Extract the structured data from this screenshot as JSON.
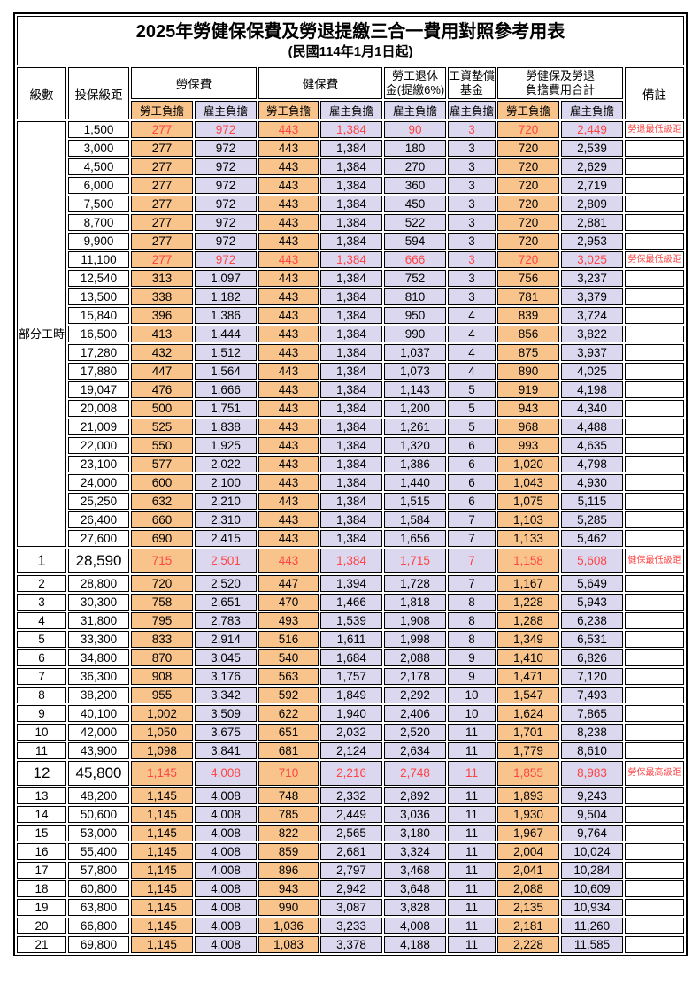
{
  "title": "2025年勞健保保費及勞退提繳三合一費用對照參考用表",
  "subtitle": "(民國114年1月1日起)",
  "colors": {
    "employee_col_bg": "#F9C48C",
    "employer_col_bg": "#DBD7EE",
    "highlight_red": "#FF4444",
    "border": "#000000"
  },
  "header": {
    "level": "級數",
    "bracket": "投保級距",
    "labor_ins": "勞保費",
    "health_ins": "健保費",
    "pension_line1": "勞工退休",
    "pension_line2": "金(提繳6%)",
    "wage_fund_line1": "工資墊償",
    "wage_fund_line2": "基金",
    "total_line1": "勞健保及勞退",
    "total_line2": "負擔費用合計",
    "remark": "備註",
    "employee": "勞工負擔",
    "employer": "雇主負擔"
  },
  "part_time_label": "部分工時",
  "part_time_rowspan": 23,
  "columns": [
    {
      "key": "bracket",
      "name": "bracket-cell",
      "cls": "c-bracket"
    },
    {
      "key": "v0",
      "name": "labor-employee-cell",
      "cls": "c-emp val"
    },
    {
      "key": "v1",
      "name": "labor-employer-cell",
      "cls": "c-er val"
    },
    {
      "key": "v2",
      "name": "health-employee-cell",
      "cls": "c-emp val"
    },
    {
      "key": "v3",
      "name": "health-employer-cell",
      "cls": "c-er val"
    },
    {
      "key": "v4",
      "name": "pension-employer-cell",
      "cls": "c-er val"
    },
    {
      "key": "v5",
      "name": "wage-fund-employer-cell",
      "cls": "c-er val"
    },
    {
      "key": "v6",
      "name": "total-employee-cell",
      "cls": "c-emp val"
    },
    {
      "key": "v7",
      "name": "total-employer-cell",
      "cls": "c-er val"
    },
    {
      "key": "remark",
      "name": "remark-cell",
      "cls": "c-remark"
    }
  ],
  "rows": [
    {
      "level": "",
      "bracket": "1,500",
      "v": [
        "277",
        "972",
        "443",
        "1,384",
        "90",
        "3",
        "720",
        "2,449"
      ],
      "remark": "勞退最低級距",
      "red": true
    },
    {
      "level": "",
      "bracket": "3,000",
      "v": [
        "277",
        "972",
        "443",
        "1,384",
        "180",
        "3",
        "720",
        "2,539"
      ]
    },
    {
      "level": "",
      "bracket": "4,500",
      "v": [
        "277",
        "972",
        "443",
        "1,384",
        "270",
        "3",
        "720",
        "2,629"
      ]
    },
    {
      "level": "",
      "bracket": "6,000",
      "v": [
        "277",
        "972",
        "443",
        "1,384",
        "360",
        "3",
        "720",
        "2,719"
      ]
    },
    {
      "level": "",
      "bracket": "7,500",
      "v": [
        "277",
        "972",
        "443",
        "1,384",
        "450",
        "3",
        "720",
        "2,809"
      ]
    },
    {
      "level": "",
      "bracket": "8,700",
      "v": [
        "277",
        "972",
        "443",
        "1,384",
        "522",
        "3",
        "720",
        "2,881"
      ]
    },
    {
      "level": "",
      "bracket": "9,900",
      "v": [
        "277",
        "972",
        "443",
        "1,384",
        "594",
        "3",
        "720",
        "2,953"
      ]
    },
    {
      "level": "",
      "bracket": "11,100",
      "v": [
        "277",
        "972",
        "443",
        "1,384",
        "666",
        "3",
        "720",
        "3,025"
      ],
      "remark": "勞保最低級距",
      "red": true
    },
    {
      "level": "",
      "bracket": "12,540",
      "v": [
        "313",
        "1,097",
        "443",
        "1,384",
        "752",
        "3",
        "756",
        "3,237"
      ]
    },
    {
      "level": "",
      "bracket": "13,500",
      "v": [
        "338",
        "1,182",
        "443",
        "1,384",
        "810",
        "3",
        "781",
        "3,379"
      ]
    },
    {
      "level": "",
      "bracket": "15,840",
      "v": [
        "396",
        "1,386",
        "443",
        "1,384",
        "950",
        "4",
        "839",
        "3,724"
      ]
    },
    {
      "level": "",
      "bracket": "16,500",
      "v": [
        "413",
        "1,444",
        "443",
        "1,384",
        "990",
        "4",
        "856",
        "3,822"
      ]
    },
    {
      "level": "",
      "bracket": "17,280",
      "v": [
        "432",
        "1,512",
        "443",
        "1,384",
        "1,037",
        "4",
        "875",
        "3,937"
      ]
    },
    {
      "level": "",
      "bracket": "17,880",
      "v": [
        "447",
        "1,564",
        "443",
        "1,384",
        "1,073",
        "4",
        "890",
        "4,025"
      ]
    },
    {
      "level": "",
      "bracket": "19,047",
      "v": [
        "476",
        "1,666",
        "443",
        "1,384",
        "1,143",
        "5",
        "919",
        "4,198"
      ]
    },
    {
      "level": "",
      "bracket": "20,008",
      "v": [
        "500",
        "1,751",
        "443",
        "1,384",
        "1,200",
        "5",
        "943",
        "4,340"
      ]
    },
    {
      "level": "",
      "bracket": "21,009",
      "v": [
        "525",
        "1,838",
        "443",
        "1,384",
        "1,261",
        "5",
        "968",
        "4,488"
      ]
    },
    {
      "level": "",
      "bracket": "22,000",
      "v": [
        "550",
        "1,925",
        "443",
        "1,384",
        "1,320",
        "6",
        "993",
        "4,635"
      ]
    },
    {
      "level": "",
      "bracket": "23,100",
      "v": [
        "577",
        "2,022",
        "443",
        "1,384",
        "1,386",
        "6",
        "1,020",
        "4,798"
      ]
    },
    {
      "level": "",
      "bracket": "24,000",
      "v": [
        "600",
        "2,100",
        "443",
        "1,384",
        "1,440",
        "6",
        "1,043",
        "4,930"
      ]
    },
    {
      "level": "",
      "bracket": "25,250",
      "v": [
        "632",
        "2,210",
        "443",
        "1,384",
        "1,515",
        "6",
        "1,075",
        "5,115"
      ]
    },
    {
      "level": "",
      "bracket": "26,400",
      "v": [
        "660",
        "2,310",
        "443",
        "1,384",
        "1,584",
        "7",
        "1,103",
        "5,285"
      ]
    },
    {
      "level": "",
      "bracket": "27,600",
      "v": [
        "690",
        "2,415",
        "443",
        "1,384",
        "1,656",
        "7",
        "1,133",
        "5,462"
      ]
    },
    {
      "level": "1",
      "bracket": "28,590",
      "v": [
        "715",
        "2,501",
        "443",
        "1,384",
        "1,715",
        "7",
        "1,158",
        "5,608"
      ],
      "remark": "健保最低級距",
      "red": true,
      "big": true
    },
    {
      "level": "2",
      "bracket": "28,800",
      "v": [
        "720",
        "2,520",
        "447",
        "1,394",
        "1,728",
        "7",
        "1,167",
        "5,649"
      ]
    },
    {
      "level": "3",
      "bracket": "30,300",
      "v": [
        "758",
        "2,651",
        "470",
        "1,466",
        "1,818",
        "8",
        "1,228",
        "5,943"
      ]
    },
    {
      "level": "4",
      "bracket": "31,800",
      "v": [
        "795",
        "2,783",
        "493",
        "1,539",
        "1,908",
        "8",
        "1,288",
        "6,238"
      ]
    },
    {
      "level": "5",
      "bracket": "33,300",
      "v": [
        "833",
        "2,914",
        "516",
        "1,611",
        "1,998",
        "8",
        "1,349",
        "6,531"
      ]
    },
    {
      "level": "6",
      "bracket": "34,800",
      "v": [
        "870",
        "3,045",
        "540",
        "1,684",
        "2,088",
        "9",
        "1,410",
        "6,826"
      ]
    },
    {
      "level": "7",
      "bracket": "36,300",
      "v": [
        "908",
        "3,176",
        "563",
        "1,757",
        "2,178",
        "9",
        "1,471",
        "7,120"
      ]
    },
    {
      "level": "8",
      "bracket": "38,200",
      "v": [
        "955",
        "3,342",
        "592",
        "1,849",
        "2,292",
        "10",
        "1,547",
        "7,493"
      ]
    },
    {
      "level": "9",
      "bracket": "40,100",
      "v": [
        "1,002",
        "3,509",
        "622",
        "1,940",
        "2,406",
        "10",
        "1,624",
        "7,865"
      ]
    },
    {
      "level": "10",
      "bracket": "42,000",
      "v": [
        "1,050",
        "3,675",
        "651",
        "2,032",
        "2,520",
        "11",
        "1,701",
        "8,238"
      ]
    },
    {
      "level": "11",
      "bracket": "43,900",
      "v": [
        "1,098",
        "3,841",
        "681",
        "2,124",
        "2,634",
        "11",
        "1,779",
        "8,610"
      ]
    },
    {
      "level": "12",
      "bracket": "45,800",
      "v": [
        "1,145",
        "4,008",
        "710",
        "2,216",
        "2,748",
        "11",
        "1,855",
        "8,983"
      ],
      "remark": "勞保最高級距",
      "red": true,
      "big": true
    },
    {
      "level": "13",
      "bracket": "48,200",
      "v": [
        "1,145",
        "4,008",
        "748",
        "2,332",
        "2,892",
        "11",
        "1,893",
        "9,243"
      ]
    },
    {
      "level": "14",
      "bracket": "50,600",
      "v": [
        "1,145",
        "4,008",
        "785",
        "2,449",
        "3,036",
        "11",
        "1,930",
        "9,504"
      ]
    },
    {
      "level": "15",
      "bracket": "53,000",
      "v": [
        "1,145",
        "4,008",
        "822",
        "2,565",
        "3,180",
        "11",
        "1,967",
        "9,764"
      ]
    },
    {
      "level": "16",
      "bracket": "55,400",
      "v": [
        "1,145",
        "4,008",
        "859",
        "2,681",
        "3,324",
        "11",
        "2,004",
        "10,024"
      ]
    },
    {
      "level": "17",
      "bracket": "57,800",
      "v": [
        "1,145",
        "4,008",
        "896",
        "2,797",
        "3,468",
        "11",
        "2,041",
        "10,284"
      ]
    },
    {
      "level": "18",
      "bracket": "60,800",
      "v": [
        "1,145",
        "4,008",
        "943",
        "2,942",
        "3,648",
        "11",
        "2,088",
        "10,609"
      ]
    },
    {
      "level": "19",
      "bracket": "63,800",
      "v": [
        "1,145",
        "4,008",
        "990",
        "3,087",
        "3,828",
        "11",
        "2,135",
        "10,934"
      ]
    },
    {
      "level": "20",
      "bracket": "66,800",
      "v": [
        "1,145",
        "4,008",
        "1,036",
        "3,233",
        "4,008",
        "11",
        "2,181",
        "11,260"
      ]
    },
    {
      "level": "21",
      "bracket": "69,800",
      "v": [
        "1,145",
        "4,008",
        "1,083",
        "3,378",
        "4,188",
        "11",
        "2,228",
        "11,585"
      ]
    }
  ]
}
